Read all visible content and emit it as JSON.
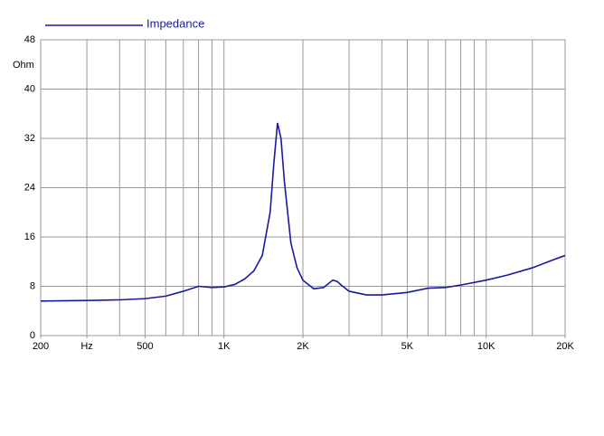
{
  "chart_data": {
    "type": "line",
    "x_scale": "log",
    "y_unit_label": "Ohm",
    "x": [
      200,
      300,
      400,
      500,
      600,
      700,
      800,
      900,
      1000,
      1100,
      1200,
      1300,
      1400,
      1500,
      1550,
      1600,
      1650,
      1700,
      1800,
      1900,
      2000,
      2200,
      2400,
      2600,
      2700,
      2800,
      3000,
      3500,
      4000,
      5000,
      6000,
      7000,
      8000,
      10000,
      12000,
      15000,
      18000,
      20000
    ],
    "series": [
      {
        "name": "Impedance",
        "color": "#1a1aa0",
        "values": [
          5.6,
          5.7,
          5.8,
          6.0,
          6.4,
          7.2,
          8.0,
          7.8,
          7.9,
          8.3,
          9.2,
          10.5,
          13,
          20,
          28,
          34.5,
          32,
          25,
          15,
          11,
          9,
          7.6,
          7.8,
          9.0,
          8.8,
          8.2,
          7.2,
          6.6,
          6.6,
          7.0,
          7.7,
          7.8,
          8.2,
          9.0,
          9.8,
          11.0,
          12.3,
          13.0
        ]
      }
    ],
    "xlim": [
      200,
      20000
    ],
    "xticks": [
      200,
      {
        "value": 300,
        "label": "Hz"
      },
      500,
      {
        "value": 1000,
        "label": "1K"
      },
      {
        "value": 2000,
        "label": "2K"
      },
      {
        "value": 5000,
        "label": "5K"
      },
      {
        "value": 10000,
        "label": "10K"
      },
      {
        "value": 20000,
        "label": "20K"
      }
    ],
    "x_minor_grid": [
      300,
      400,
      500,
      600,
      700,
      800,
      900,
      1000,
      2000,
      3000,
      4000,
      5000,
      6000,
      7000,
      8000,
      9000,
      10000,
      15000
    ],
    "ylim": [
      0,
      48
    ],
    "yticks": [
      0,
      8,
      16,
      24,
      32,
      40,
      48
    ],
    "grid": true
  }
}
